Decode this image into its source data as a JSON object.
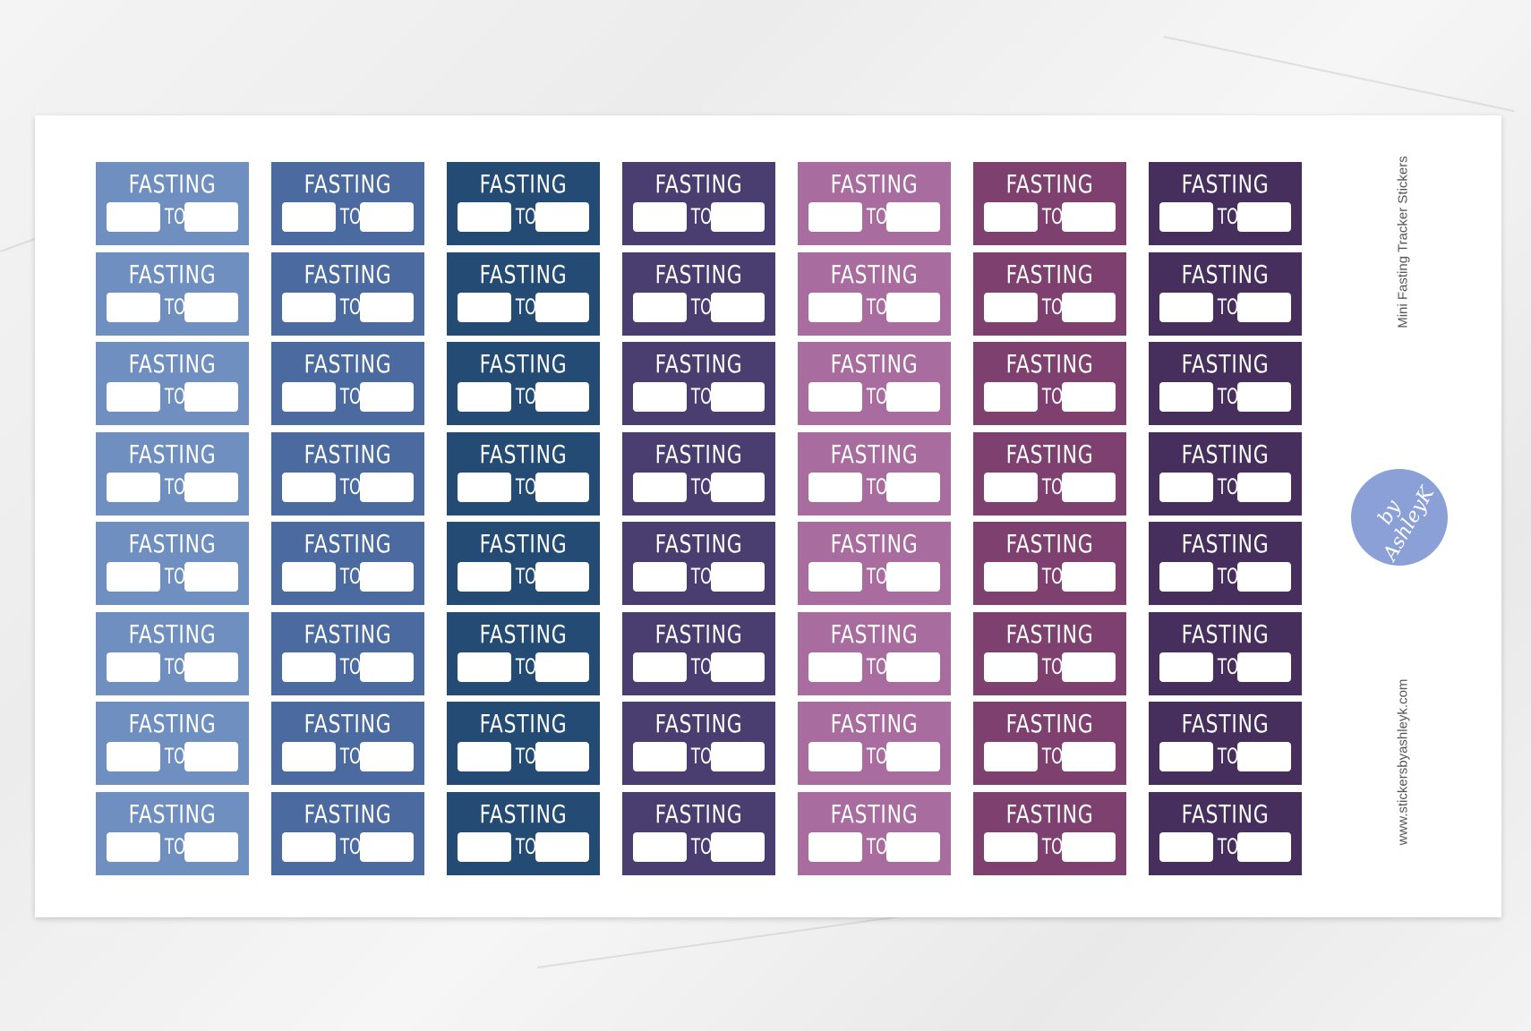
{
  "sheet": {
    "title": "Mini Fasting Tracker Stickers",
    "website": "www.stickersbyashleyk.com",
    "logo_text": "by AshleyK"
  },
  "sticker": {
    "title": "FASTING",
    "separator": "TO"
  },
  "columns": [
    {
      "color": "#6f8fc0"
    },
    {
      "color": "#4b6a9f"
    },
    {
      "color": "#234b73"
    },
    {
      "color": "#4a3e71"
    },
    {
      "color": "#a86d9e"
    },
    {
      "color": "#7e406f"
    },
    {
      "color": "#462f5d"
    }
  ],
  "rows": 8
}
